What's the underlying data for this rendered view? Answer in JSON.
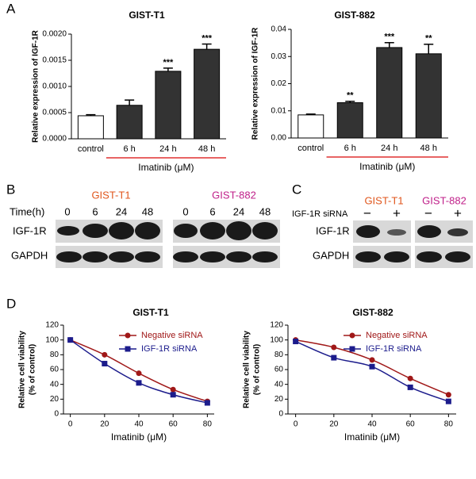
{
  "panel_labels": [
    "A",
    "B",
    "C",
    "D"
  ],
  "chart_data": [
    {
      "type": "bar",
      "title": "GIST-T1",
      "ylabel": "Relative expression of IGF-1R",
      "xlabel": "Imatinib (μM)",
      "categories": [
        "control",
        "6 h",
        "24 h",
        "48 h"
      ],
      "values": [
        0.00044,
        0.00064,
        0.00129,
        0.00171
      ],
      "errors": [
        2e-05,
        0.0001,
        6e-05,
        0.0001
      ],
      "colors": [
        "#ffffff",
        "#333333",
        "#333333",
        "#333333"
      ],
      "annotations": [
        null,
        null,
        "***",
        "***"
      ],
      "ylim": [
        0,
        0.002
      ],
      "yticks": [
        {
          "value": 0,
          "label": "0.0000"
        },
        {
          "value": 0.0005,
          "label": "0.0005"
        },
        {
          "value": 0.001,
          "label": "0.0010"
        },
        {
          "value": 0.0015,
          "label": "0.0015"
        },
        {
          "value": 0.002,
          "label": "0.0020"
        }
      ]
    },
    {
      "type": "bar",
      "title": "GIST-882",
      "ylabel": "Relative expression of IGF-1R",
      "xlabel": "Imatinib (μM)",
      "categories": [
        "control",
        "6 h",
        "24 h",
        "48 h"
      ],
      "values": [
        0.0085,
        0.013,
        0.0333,
        0.031
      ],
      "errors": [
        0.0003,
        0.0005,
        0.0018,
        0.0035
      ],
      "colors": [
        "#ffffff",
        "#333333",
        "#333333",
        "#333333"
      ],
      "annotations": [
        null,
        "**",
        "***",
        "**"
      ],
      "ylim": [
        0,
        0.04
      ],
      "yticks": [
        {
          "value": 0,
          "label": "0.00"
        },
        {
          "value": 0.01,
          "label": "0.01"
        },
        {
          "value": 0.02,
          "label": "0.02"
        },
        {
          "value": 0.03,
          "label": "0.03"
        },
        {
          "value": 0.04,
          "label": "0.04"
        }
      ]
    },
    {
      "type": "line",
      "title": "GIST-T1",
      "xlabel": "Imatinib (μM)",
      "ylabel": [
        "Relative cell viability",
        "(% of control)"
      ],
      "x": [
        0,
        20,
        40,
        60,
        80
      ],
      "series": [
        {
          "name": "Negative siRNA",
          "color": "#a01818",
          "marker": "circle",
          "values": [
            100,
            80,
            55,
            33,
            17
          ]
        },
        {
          "name": "IGF-1R siRNA",
          "color": "#1c1c8c",
          "marker": "square",
          "values": [
            100,
            68,
            42,
            26,
            15
          ]
        }
      ],
      "xlim": [
        -4,
        84
      ],
      "ylim": [
        0,
        120
      ],
      "xticks": [
        0,
        20,
        40,
        60,
        80
      ],
      "yticks": [
        0,
        20,
        40,
        60,
        80,
        100,
        120
      ]
    },
    {
      "type": "line",
      "title": "GIST-882",
      "xlabel": "Imatinib (μM)",
      "ylabel": [
        "Relative cell viability",
        "(% of control)"
      ],
      "x": [
        0,
        20,
        40,
        60,
        80
      ],
      "series": [
        {
          "name": "Negative siRNA",
          "color": "#a01818",
          "marker": "circle",
          "values": [
            100,
            90,
            73,
            48,
            26
          ]
        },
        {
          "name": "IGF-1R siRNA",
          "color": "#1c1c8c",
          "marker": "square",
          "values": [
            98,
            76,
            64,
            36,
            17
          ]
        }
      ],
      "xlim": [
        -4,
        84
      ],
      "ylim": [
        0,
        120
      ],
      "xticks": [
        0,
        20,
        40,
        60,
        80
      ],
      "yticks": [
        0,
        20,
        40,
        60,
        80,
        100,
        120
      ]
    }
  ],
  "blots": {
    "B": {
      "groups": [
        "GIST-T1",
        "GIST-882"
      ],
      "time_label": "Time(h)",
      "lanes": [
        "0",
        "6",
        "24",
        "48"
      ],
      "rows": [
        "IGF-1R",
        "GAPDH"
      ]
    },
    "C": {
      "groups": [
        "GIST-T1",
        "GIST-882"
      ],
      "treatment_label": "IGF-1R siRNA",
      "lanes": [
        "−",
        "+"
      ],
      "rows": [
        "IGF-1R",
        "GAPDH"
      ]
    }
  }
}
